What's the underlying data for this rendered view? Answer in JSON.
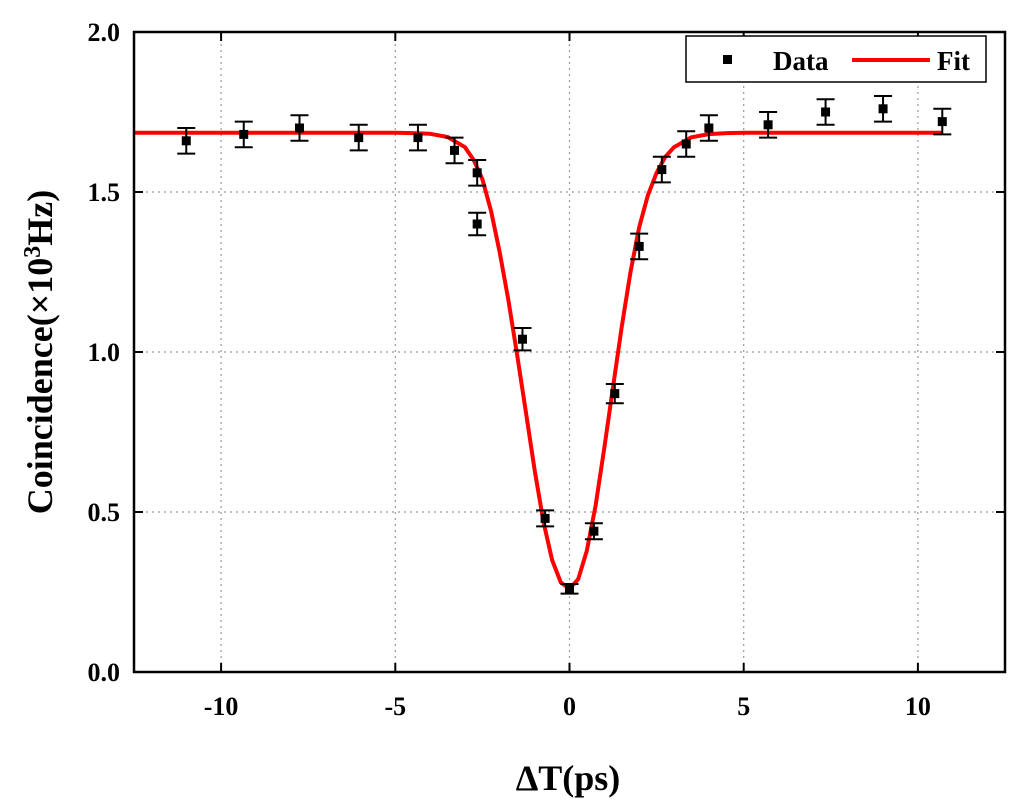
{
  "chart_data": {
    "type": "scatter",
    "xlabel": "ΔT(ps)",
    "ylabel": "Coincidence(×10³Hz)",
    "ylabel_parts": {
      "main": "Coincidence(×10",
      "sup": "3",
      "tail": "Hz)"
    },
    "xlim": [
      -12.5,
      12.5
    ],
    "ylim": [
      0.0,
      2.0
    ],
    "xticks": [
      -10,
      -5,
      0,
      5,
      10
    ],
    "xtick_labels": [
      "-10",
      "-5",
      "0",
      "5",
      "10"
    ],
    "yticks": [
      0.0,
      0.5,
      1.0,
      1.5,
      2.0
    ],
    "ytick_labels": [
      "0.0",
      "0.5",
      "1.0",
      "1.5",
      "2.0"
    ],
    "grid": true,
    "legend_position": "top-right",
    "colors": {
      "data": "#000000",
      "fit": "#ff0000"
    },
    "series": [
      {
        "name": "Data",
        "kind": "points-with-error-bars",
        "x": [
          -11.0,
          -9.35,
          -7.75,
          -6.05,
          -4.35,
          -3.3,
          -2.65,
          -2.65,
          -1.35,
          -0.7,
          0.0,
          0.7,
          1.3,
          2.0,
          2.65,
          3.35,
          4.0,
          5.7,
          7.35,
          9.0,
          10.7
        ],
        "y": [
          1.66,
          1.68,
          1.7,
          1.67,
          1.67,
          1.63,
          1.56,
          1.4,
          1.04,
          0.48,
          0.26,
          0.44,
          0.87,
          1.33,
          1.57,
          1.65,
          1.7,
          1.71,
          1.75,
          1.76,
          1.72
        ],
        "err": [
          0.04,
          0.04,
          0.04,
          0.04,
          0.04,
          0.04,
          0.04,
          0.035,
          0.035,
          0.025,
          0.015,
          0.025,
          0.03,
          0.04,
          0.04,
          0.04,
          0.04,
          0.04,
          0.04,
          0.04,
          0.04
        ]
      },
      {
        "name": "Fit",
        "kind": "line",
        "x": [
          -12.5,
          -11.0,
          -9.5,
          -8.0,
          -6.5,
          -5.0,
          -4.5,
          -4.0,
          -3.5,
          -3.0,
          -2.75,
          -2.5,
          -2.25,
          -2.0,
          -1.75,
          -1.5,
          -1.25,
          -1.0,
          -0.75,
          -0.5,
          -0.25,
          0.0,
          0.25,
          0.5,
          0.75,
          1.0,
          1.25,
          1.5,
          1.75,
          2.0,
          2.25,
          2.5,
          2.75,
          3.0,
          3.5,
          4.0,
          4.5,
          5.0,
          6.5,
          8.0,
          9.5,
          10.7
        ],
        "y": [
          1.685,
          1.685,
          1.685,
          1.685,
          1.685,
          1.685,
          1.684,
          1.682,
          1.672,
          1.64,
          1.6,
          1.54,
          1.44,
          1.31,
          1.16,
          0.99,
          0.81,
          0.63,
          0.47,
          0.35,
          0.28,
          0.26,
          0.29,
          0.38,
          0.52,
          0.7,
          0.89,
          1.08,
          1.25,
          1.39,
          1.49,
          1.56,
          1.61,
          1.64,
          1.671,
          1.681,
          1.684,
          1.685,
          1.685,
          1.685,
          1.685,
          1.685
        ]
      }
    ]
  }
}
